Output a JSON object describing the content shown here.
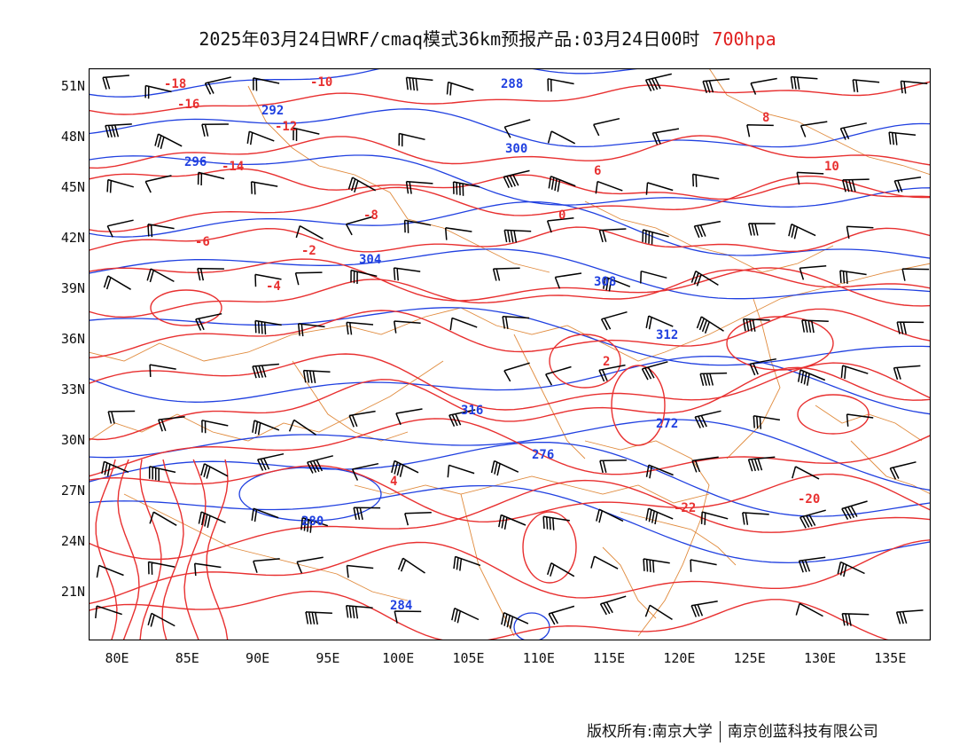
{
  "title": {
    "text": "2025年03月24日WRF/cmaq模式36km预报产品:03月24日00时",
    "level": "700hpa"
  },
  "lat_labels": [
    "51N",
    "48N",
    "45N",
    "42N",
    "39N",
    "36N",
    "33N",
    "30N",
    "27N",
    "24N",
    "21N"
  ],
  "lon_labels": [
    "80E",
    "85E",
    "90E",
    "95E",
    "100E",
    "105E",
    "110E",
    "115E",
    "120E",
    "125E",
    "130E",
    "135E"
  ],
  "red_labels": [
    "-18",
    "-16",
    "-14",
    "-12",
    "-10",
    "-8",
    "-6",
    "-4",
    "-2",
    "0",
    "2",
    "4",
    "6",
    "8",
    "10",
    "-22",
    "-20"
  ],
  "blue_labels": [
    "288",
    "292",
    "296",
    "300",
    "304",
    "308",
    "312",
    "316",
    "272",
    "276",
    "280",
    "284"
  ],
  "copyright": {
    "left": "版权所有:南京大学",
    "right": "南京创蓝科技有限公司"
  },
  "colors": {
    "temperature": "#e83030",
    "geopotential": "#2040e0",
    "border": "#e08a3c",
    "wind": "#000000"
  }
}
